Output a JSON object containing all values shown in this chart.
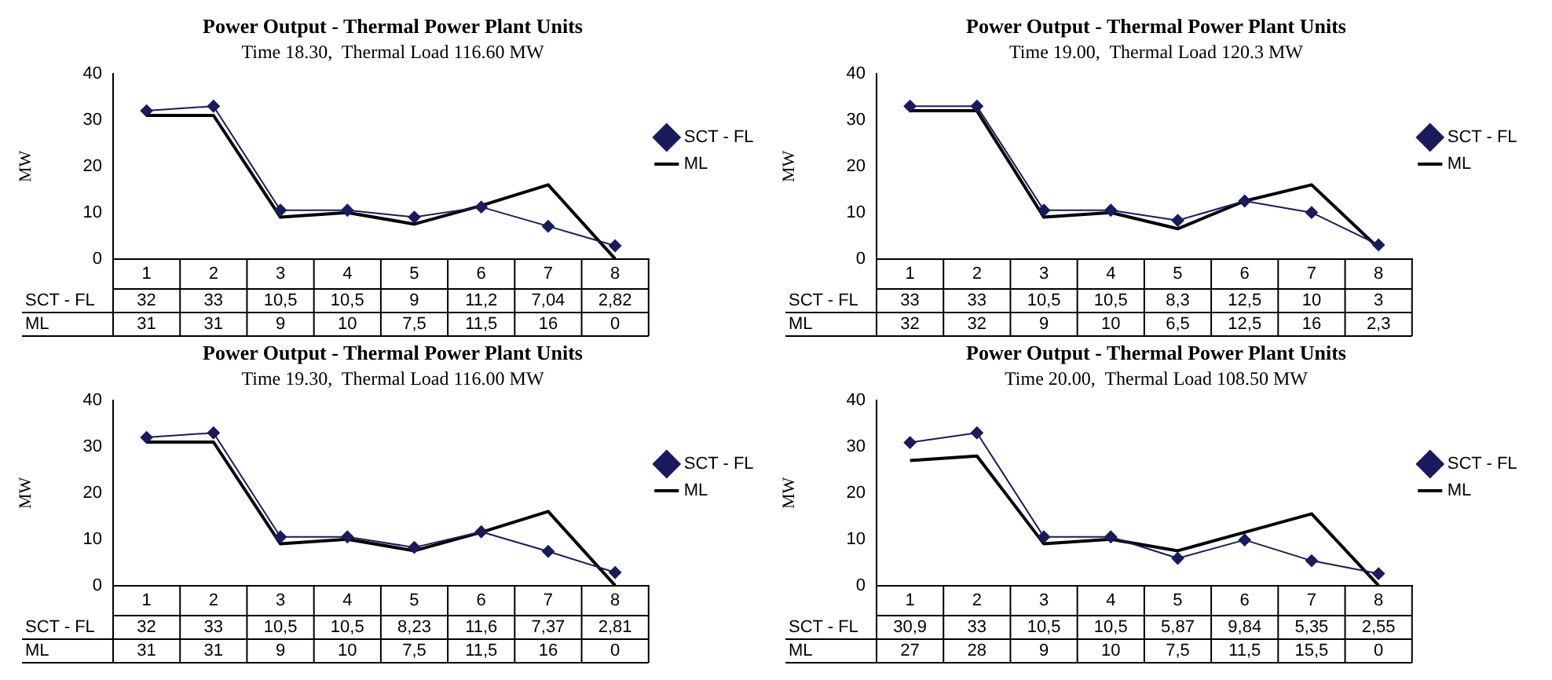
{
  "chart_data": [
    {
      "type": "line",
      "title": "Power Output - Thermal Power Plant Units",
      "subtitle": "Time 18.30,  Thermal Load 116.60 MW",
      "ylabel": "MW",
      "categories": [
        "1",
        "2",
        "3",
        "4",
        "5",
        "6",
        "7",
        "8"
      ],
      "ylim": [
        0,
        40
      ],
      "yticks": [
        0,
        10,
        20,
        30,
        40
      ],
      "grid": false,
      "legend": "right",
      "series": [
        {
          "name": "SCT - FL",
          "color": "#1a1a5e",
          "marker": "diamond",
          "values": [
            32,
            33,
            10.5,
            10.5,
            9,
            11.2,
            7.04,
            2.82
          ],
          "value_labels": [
            "32",
            "33",
            "10,5",
            "10,5",
            "9",
            "11,2",
            "7,04",
            "2,82"
          ]
        },
        {
          "name": "ML",
          "color": "#000000",
          "marker": "none",
          "values": [
            31,
            31,
            9,
            10,
            7.5,
            11.5,
            16,
            0
          ],
          "value_labels": [
            "31",
            "31",
            "9",
            "10",
            "7,5",
            "11,5",
            "16",
            "0"
          ]
        }
      ]
    },
    {
      "type": "line",
      "title": "Power Output - Thermal Power Plant Units",
      "subtitle": "Time 19.00,  Thermal Load 120.3 MW",
      "ylabel": "MW",
      "categories": [
        "1",
        "2",
        "3",
        "4",
        "5",
        "6",
        "7",
        "8"
      ],
      "ylim": [
        0,
        40
      ],
      "yticks": [
        0,
        10,
        20,
        30,
        40
      ],
      "grid": false,
      "legend": "right",
      "series": [
        {
          "name": "SCT - FL",
          "color": "#1a1a5e",
          "marker": "diamond",
          "values": [
            33,
            33,
            10.5,
            10.5,
            8.3,
            12.5,
            10,
            3
          ],
          "value_labels": [
            "33",
            "33",
            "10,5",
            "10,5",
            "8,3",
            "12,5",
            "10",
            "3"
          ]
        },
        {
          "name": "ML",
          "color": "#000000",
          "marker": "none",
          "values": [
            32,
            32,
            9,
            10,
            6.5,
            12.5,
            16,
            2.3
          ],
          "value_labels": [
            "32",
            "32",
            "9",
            "10",
            "6,5",
            "12,5",
            "16",
            "2,3"
          ]
        }
      ]
    },
    {
      "type": "line",
      "title": "Power Output - Thermal Power Plant Units",
      "subtitle": "Time 19.30,  Thermal Load 116.00 MW",
      "ylabel": "MW",
      "categories": [
        "1",
        "2",
        "3",
        "4",
        "5",
        "6",
        "7",
        "8"
      ],
      "ylim": [
        0,
        40
      ],
      "yticks": [
        0,
        10,
        20,
        30,
        40
      ],
      "grid": false,
      "legend": "right",
      "series": [
        {
          "name": "SCT - FL",
          "color": "#1a1a5e",
          "marker": "diamond",
          "values": [
            32,
            33,
            10.5,
            10.5,
            8.23,
            11.6,
            7.37,
            2.81
          ],
          "value_labels": [
            "32",
            "33",
            "10,5",
            "10,5",
            "8,23",
            "11,6",
            "7,37",
            "2,81"
          ]
        },
        {
          "name": "ML",
          "color": "#000000",
          "marker": "none",
          "values": [
            31,
            31,
            9,
            10,
            7.5,
            11.5,
            16,
            0
          ],
          "value_labels": [
            "31",
            "31",
            "9",
            "10",
            "7,5",
            "11,5",
            "16",
            "0"
          ]
        }
      ]
    },
    {
      "type": "line",
      "title": "Power Output - Thermal Power Plant Units",
      "subtitle": "Time 20.00,  Thermal Load 108.50 MW",
      "ylabel": "MW",
      "categories": [
        "1",
        "2",
        "3",
        "4",
        "5",
        "6",
        "7",
        "8"
      ],
      "ylim": [
        0,
        40
      ],
      "yticks": [
        0,
        10,
        20,
        30,
        40
      ],
      "grid": false,
      "legend": "right",
      "series": [
        {
          "name": "SCT - FL",
          "color": "#1a1a5e",
          "marker": "diamond",
          "values": [
            30.9,
            33,
            10.5,
            10.5,
            5.87,
            9.84,
            5.35,
            2.55
          ],
          "value_labels": [
            "30,9",
            "33",
            "10,5",
            "10,5",
            "5,87",
            "9,84",
            "5,35",
            "2,55"
          ]
        },
        {
          "name": "ML",
          "color": "#000000",
          "marker": "none",
          "values": [
            27,
            28,
            9,
            10,
            7.5,
            11.5,
            15.5,
            0
          ],
          "value_labels": [
            "27",
            "28",
            "9",
            "10",
            "7,5",
            "11,5",
            "15,5",
            "0"
          ]
        }
      ]
    }
  ]
}
